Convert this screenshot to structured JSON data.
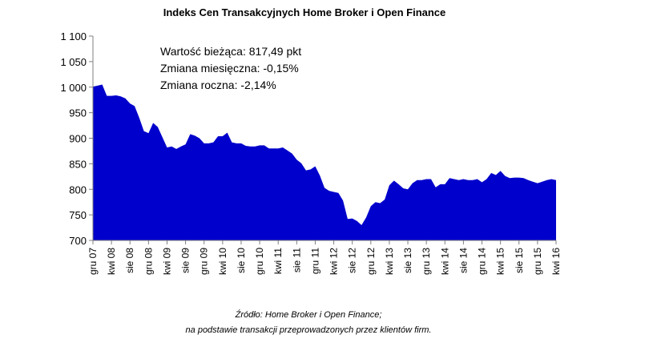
{
  "chart_data": {
    "type": "area",
    "title": "Indeks Cen Transakcyjnych Home Broker i Open Finance",
    "xlabel": "",
    "ylabel": "",
    "ylim": [
      700,
      1100
    ],
    "yticks": [
      "1 100",
      "1 050",
      "1 000",
      "950",
      "900",
      "850",
      "800",
      "750",
      "700"
    ],
    "ytick_values": [
      1100,
      1050,
      1000,
      950,
      900,
      850,
      800,
      750,
      700
    ],
    "xticks": [
      "gru 07",
      "kwi 08",
      "sie 08",
      "gru 08",
      "kwi 09",
      "sie 09",
      "gru 09",
      "kwi 10",
      "sie 10",
      "gru 10",
      "kwi 11",
      "sie 11",
      "gru 11",
      "kwi 12",
      "sie 12",
      "gru 12",
      "kwi 13",
      "sie 13",
      "gru 13",
      "kwi 14",
      "sie 14",
      "gru 14",
      "kwi 15",
      "sie 15",
      "gru 15",
      "kwi 16"
    ],
    "fill_color": "#0000cc",
    "grid": false,
    "series": [
      {
        "values": [
          1001,
          1003,
          1005,
          983,
          983,
          984,
          982,
          978,
          968,
          963,
          940,
          914,
          910,
          930,
          922,
          902,
          882,
          884,
          879,
          884,
          888,
          908,
          905,
          900,
          890,
          890,
          892,
          904,
          904,
          911,
          892,
          890,
          890,
          885,
          884,
          884,
          886,
          886,
          880,
          880,
          880,
          882,
          876,
          870,
          858,
          851,
          837,
          839,
          845,
          827,
          803,
          797,
          795,
          793,
          778,
          742,
          743,
          738,
          730,
          745,
          767,
          775,
          773,
          780,
          808,
          817,
          810,
          802,
          800,
          812,
          818,
          818,
          820,
          820,
          804,
          810,
          810,
          822,
          820,
          818,
          820,
          818,
          818,
          820,
          814,
          820,
          832,
          828,
          836,
          826,
          822,
          823,
          823,
          822,
          818,
          815,
          812,
          815,
          818,
          820,
          818
        ]
      }
    ]
  },
  "annotations": {
    "current_value": "Wartość bieżąca: 817,49 pkt",
    "monthly_change": "Zmiana miesięczna: -0,15%",
    "annual_change": "Zmiana roczna: -2,14%"
  },
  "source": {
    "line1": "Źródło: Home Broker i Open Finance;",
    "line2": "na podstawie transakcji przeprowadzonych przez klientów firm."
  }
}
